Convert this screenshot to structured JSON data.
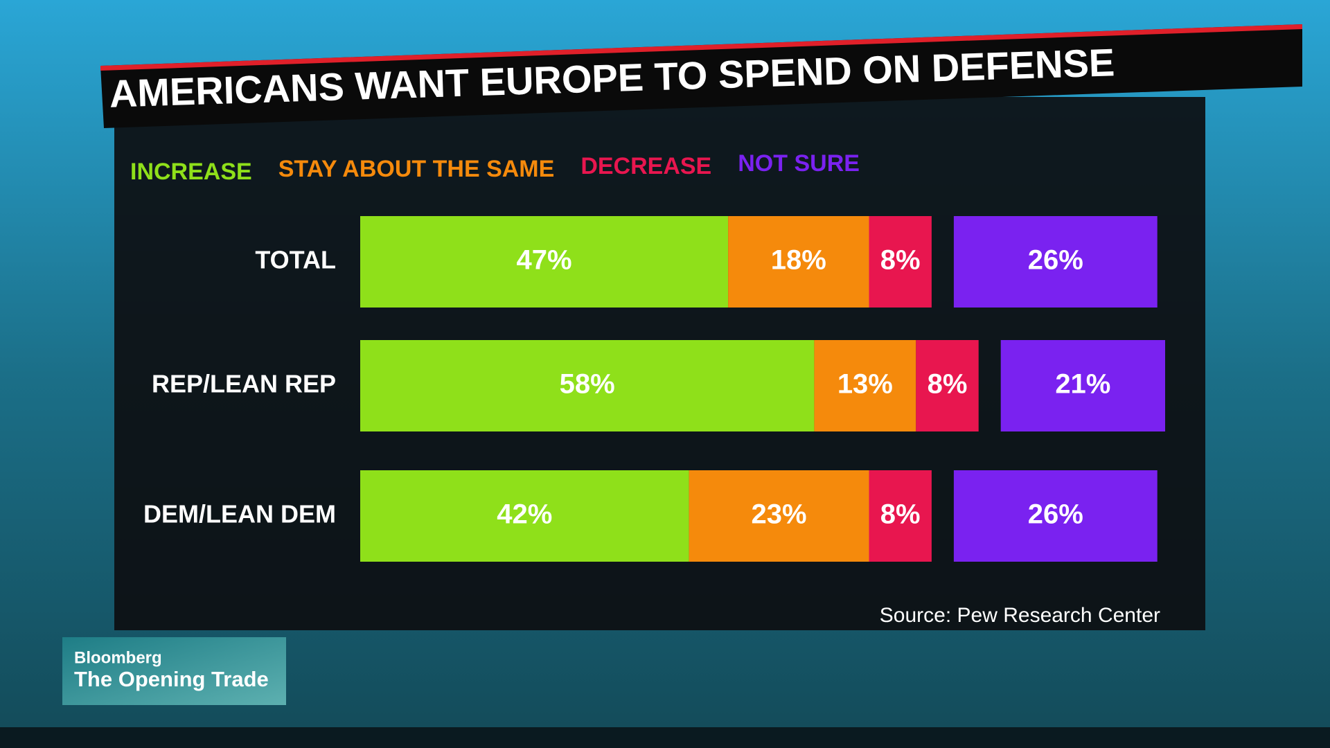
{
  "chart_data": {
    "type": "stacked-bar-horizontal",
    "title": "AMERICANS WANT EUROPE TO SPEND ON DEFENSE",
    "categories": [
      "TOTAL",
      "REP/LEAN REP",
      "DEM/LEAN DEM"
    ],
    "series": [
      {
        "name": "INCREASE",
        "color": "#8fe01a",
        "values": [
          47,
          58,
          42
        ],
        "value_labels": [
          "47%",
          "58%",
          "42%"
        ]
      },
      {
        "name": "STAY ABOUT THE SAME",
        "color": "#f58a0c",
        "values": [
          18,
          13,
          23
        ],
        "value_labels": [
          "18%",
          "13%",
          "23%"
        ]
      },
      {
        "name": "DECREASE",
        "color": "#e8164f",
        "values": [
          8,
          8,
          8
        ],
        "value_labels": [
          "8%",
          "8%",
          "8%"
        ]
      },
      {
        "name": "NOT SURE",
        "color": "#7a22f0",
        "values": [
          26,
          21,
          26
        ],
        "value_labels": [
          "26%",
          "21%",
          "26%"
        ]
      }
    ],
    "source": "Source: Pew Research Center"
  },
  "branding": {
    "network": "Bloomberg",
    "show": "The Opening Trade"
  }
}
